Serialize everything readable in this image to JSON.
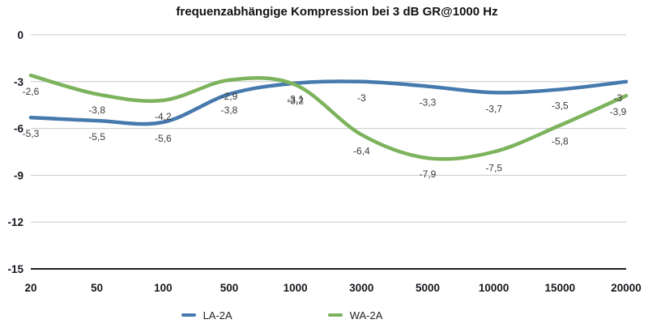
{
  "chart_data": {
    "type": "line",
    "title": "frequenzabhängige Kompression bei 3 dB GR@1000 Hz",
    "xlabel": "",
    "ylabel": "",
    "categories": [
      "20",
      "50",
      "100",
      "500",
      "1000",
      "3000",
      "5000",
      "10000",
      "15000",
      "20000"
    ],
    "series": [
      {
        "name": "LA-2A",
        "color": "#4679ad",
        "values": [
          -5.3,
          -5.5,
          -5.6,
          -3.8,
          -3.1,
          -3,
          -3.3,
          -3.7,
          -3.5,
          -3
        ],
        "point_labels": [
          "-5,3",
          "-5,5",
          "-5,6",
          "-3,8",
          "-3,1",
          "-3",
          "-3,3",
          "-3,7",
          "-3,5",
          "-3"
        ]
      },
      {
        "name": "WA-2A",
        "color": "#7cb35c",
        "values": [
          -2.6,
          -3.8,
          -4.2,
          -2.9,
          -3.2,
          -6.4,
          -7.9,
          -7.5,
          -5.8,
          -3.9
        ],
        "point_labels": [
          "-2,6",
          "-3,8",
          "-4,2",
          "-2,9",
          "-3,2",
          "-6,4",
          "-7,9",
          "-7,5",
          "-5,8",
          "-3,9"
        ]
      }
    ],
    "ylim": [
      -15,
      0
    ],
    "yticks": [
      0,
      -3,
      -6,
      -9,
      -12,
      -15
    ],
    "grid": true,
    "legend_position": "bottom",
    "colors": {
      "gridline": "#c9c9c9",
      "axis_line": "#1f1f1f",
      "axis_label": "#17171f",
      "data_label": "#3a3a3a"
    }
  }
}
